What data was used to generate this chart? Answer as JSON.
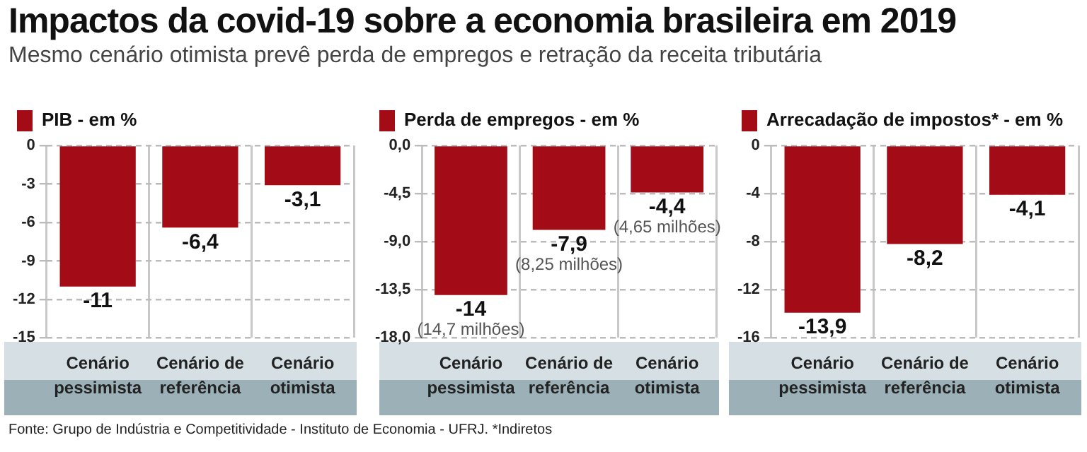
{
  "chart_data": [
    {
      "type": "bar",
      "title": "Impactos da covid-19 sobre a economia brasileira em 2019",
      "subtitle": "Mesmo cenário otimista prevê perda de empregos e retração da receita tributária",
      "annotations": [
        "Fonte: Grupo de Indústria e Competitividade - Instituto de Economia - UFRJ. *Indiretos"
      ],
      "categories": [
        "Cenário pessimista",
        "Cenário de referência",
        "Cenário otimista"
      ],
      "series": [
        {
          "name": "PIB - em %",
          "color": "#a30b16",
          "values": [
            -11,
            -6.4,
            -3.1
          ],
          "value_labels": [
            "-11",
            "-6,4",
            "-3,1"
          ]
        }
      ],
      "ylim": [
        -15,
        0
      ],
      "yticks": [
        0,
        -3,
        -6,
        -9,
        -12,
        -15
      ],
      "grid": true,
      "legend": "top left"
    },
    {
      "type": "bar",
      "categories": [
        "Cenário pessimista",
        "Cenário de referência",
        "Cenário otimista"
      ],
      "series": [
        {
          "name": "Perda de empregos - em %",
          "color": "#a30b16",
          "values": [
            -14,
            -7.9,
            -4.4
          ],
          "value_labels": [
            "-14\n(14,7 milhões)",
            "-7,9\n(8,25 milhões)",
            "-4,4\n(4,65 milhões)"
          ]
        }
      ],
      "ylim": [
        -18,
        0
      ],
      "yticks": [
        {
          "value": 0,
          "label": "0,0"
        },
        {
          "value": -4.5,
          "label": "-4,5"
        },
        {
          "value": -9,
          "label": "-9,0"
        },
        {
          "value": -13.5,
          "label": "-13,5"
        },
        {
          "value": -18,
          "label": "-18,0"
        }
      ],
      "grid": true,
      "legend": "top left"
    },
    {
      "type": "bar",
      "categories": [
        "Cenário pessimista",
        "Cenário de referência",
        "Cenário otimista"
      ],
      "series": [
        {
          "name": "Arrecadação de impostos* - em %",
          "color": "#a30b16",
          "values": [
            -13.9,
            -8.2,
            -4.1
          ],
          "value_labels": [
            "-13,9",
            "-8,2",
            "-4,1"
          ]
        }
      ],
      "ylim": [
        -16,
        0
      ],
      "yticks": [
        0,
        -4,
        -8,
        -12,
        -16
      ],
      "grid": true,
      "legend": "top left"
    }
  ]
}
